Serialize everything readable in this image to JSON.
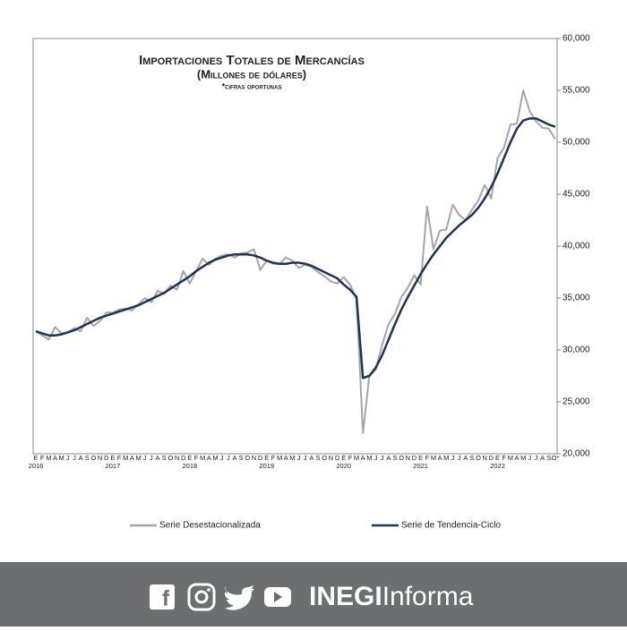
{
  "chart_data": {
    "type": "line",
    "title": "Importaciones Totales de Mercancías",
    "subtitle": "(Millones de dólares)",
    "note": "*cifras oportunas",
    "categories": [
      "E",
      "F",
      "M",
      "A",
      "M",
      "J",
      "J",
      "A",
      "S",
      "O",
      "N",
      "D",
      "E",
      "F",
      "M",
      "A",
      "M",
      "J",
      "J",
      "A",
      "S",
      "O",
      "N",
      "D",
      "E",
      "F",
      "M",
      "A",
      "M",
      "J",
      "J",
      "A",
      "S",
      "O",
      "N",
      "D",
      "E",
      "F",
      "M",
      "A",
      "M",
      "J",
      "J",
      "A",
      "S",
      "O",
      "N",
      "D",
      "E",
      "F",
      "M",
      "A",
      "M",
      "J",
      "J",
      "A",
      "S",
      "O",
      "N",
      "D",
      "E",
      "F",
      "M",
      "A",
      "M",
      "J",
      "J",
      "A",
      "S",
      "O",
      "N",
      "D",
      "E",
      "F",
      "M",
      "A",
      "M",
      "J",
      "J",
      "A",
      "S",
      "O*"
    ],
    "years": [
      "2016",
      "2017",
      "2018",
      "2019",
      "2020",
      "2021",
      "2022"
    ],
    "series": [
      {
        "name": "Serie Desestacionalizada",
        "color": "#a6a6a6",
        "values": [
          31800,
          31400,
          31000,
          32200,
          31600,
          31700,
          32100,
          31800,
          33100,
          32300,
          32800,
          33600,
          33600,
          33900,
          34000,
          33800,
          34400,
          35000,
          34600,
          35700,
          35400,
          36200,
          35800,
          37600,
          36400,
          37600,
          38800,
          38200,
          38800,
          39100,
          39200,
          38900,
          39300,
          39400,
          39700,
          37700,
          38600,
          38300,
          38300,
          38900,
          38600,
          37900,
          38200,
          38000,
          37500,
          37100,
          36600,
          36400,
          37000,
          36300,
          34900,
          22000,
          27500,
          28100,
          30500,
          32500,
          33500,
          35100,
          36000,
          37200,
          36300,
          43800,
          39700,
          41500,
          41600,
          44000,
          43000,
          42500,
          43500,
          44400,
          45900,
          44600,
          48500,
          49500,
          51700,
          51800,
          55000,
          53000,
          52000,
          51400,
          51300,
          50300
        ]
      },
      {
        "name": "Serie de Tendencia-Ciclo",
        "color": "#1c3557",
        "values": [
          31800,
          31600,
          31400,
          31400,
          31500,
          31700,
          31900,
          32200,
          32500,
          32800,
          33100,
          33300,
          33500,
          33700,
          33900,
          34100,
          34300,
          34600,
          34900,
          35200,
          35500,
          35900,
          36300,
          36700,
          37100,
          37600,
          38000,
          38400,
          38700,
          38900,
          39100,
          39200,
          39200,
          39200,
          39100,
          38900,
          38600,
          38400,
          38300,
          38300,
          38400,
          38400,
          38300,
          38100,
          37800,
          37500,
          37200,
          36900,
          36300,
          35800,
          35100,
          27300,
          27500,
          28300,
          29500,
          31000,
          32500,
          33900,
          35100,
          36200,
          37300,
          38300,
          39200,
          40000,
          40800,
          41400,
          42000,
          42500,
          43000,
          43700,
          44600,
          45700,
          47000,
          48500,
          50000,
          51300,
          52100,
          52300,
          52300,
          52000,
          51700,
          51500
        ]
      }
    ],
    "ylim": [
      20000,
      60000
    ],
    "yticks": [
      {
        "value": 20000,
        "label": "20,000"
      },
      {
        "value": 25000,
        "label": "25,000"
      },
      {
        "value": 30000,
        "label": "30,000"
      },
      {
        "value": 35000,
        "label": "35,000"
      },
      {
        "value": 40000,
        "label": "40,000"
      },
      {
        "value": 45000,
        "label": "45,000"
      },
      {
        "value": 50000,
        "label": "50,000"
      },
      {
        "value": 55000,
        "label": "55,000"
      },
      {
        "value": 60000,
        "label": "60,000"
      }
    ],
    "grid": false
  },
  "footer": {
    "brand": "INEGI",
    "brand_suffix": "Informa"
  }
}
